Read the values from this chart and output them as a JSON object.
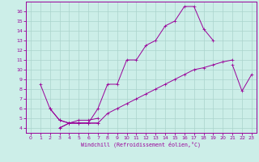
{
  "xlabel": "Windchill (Refroidissement éolien,°C)",
  "x_values": [
    0,
    1,
    2,
    3,
    4,
    5,
    6,
    7,
    8,
    9,
    10,
    11,
    12,
    13,
    14,
    15,
    16,
    17,
    18,
    19,
    20,
    21,
    22,
    23
  ],
  "s1": [
    null,
    8.5,
    6.0,
    4.8,
    4.5,
    4.5,
    4.5,
    6.0,
    8.5,
    8.5,
    11.0,
    11.0,
    12.5,
    13.0,
    14.5,
    15.0,
    16.5,
    16.5,
    14.2,
    13.0,
    null,
    10.5,
    7.8,
    9.5
  ],
  "s2": [
    null,
    null,
    null,
    4.0,
    4.5,
    4.5,
    4.5,
    4.5,
    5.5,
    6.0,
    6.5,
    7.0,
    7.5,
    8.0,
    8.5,
    9.0,
    9.5,
    10.0,
    10.2,
    10.5,
    10.8,
    11.0,
    null,
    null
  ],
  "s3": [
    null,
    null,
    6.0,
    4.8,
    4.5,
    4.5,
    4.5,
    4.5,
    null,
    null,
    null,
    null,
    null,
    null,
    null,
    null,
    null,
    null,
    null,
    null,
    null,
    null,
    null,
    null
  ],
  "s4": [
    null,
    null,
    null,
    4.0,
    4.5,
    4.8,
    4.8,
    5.0,
    null,
    null,
    null,
    null,
    null,
    null,
    null,
    null,
    null,
    null,
    null,
    null,
    null,
    null,
    null,
    null
  ],
  "color": "#990099",
  "bg_color": "#cceee8",
  "grid_color": "#aad4cc",
  "ylim": [
    3.5,
    17.0
  ],
  "xlim": [
    -0.5,
    23.5
  ],
  "yticks": [
    4,
    5,
    6,
    7,
    8,
    9,
    10,
    11,
    12,
    13,
    14,
    15,
    16
  ],
  "xticks": [
    0,
    1,
    2,
    3,
    4,
    5,
    6,
    7,
    8,
    9,
    10,
    11,
    12,
    13,
    14,
    15,
    16,
    17,
    18,
    19,
    20,
    21,
    22,
    23
  ]
}
